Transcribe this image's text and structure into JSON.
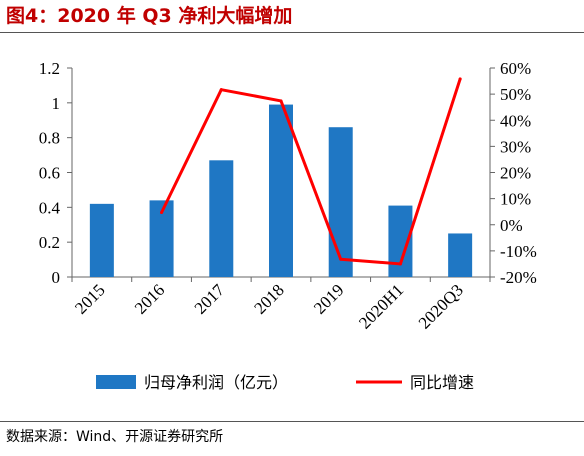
{
  "figure": {
    "title": "图4：2020 年 Q3 净利大幅增加",
    "source": "数据来源：Wind、开源证券研究所"
  },
  "chart_data": {
    "type": "bar",
    "categories": [
      "2015",
      "2016",
      "2017",
      "2018",
      "2019",
      "2020H1",
      "2020Q3"
    ],
    "series": [
      {
        "name": "归母净利润（亿元）",
        "type": "bar",
        "axis": "left",
        "color": "#1f77c4",
        "values": [
          0.42,
          0.44,
          0.67,
          0.99,
          0.86,
          0.41,
          0.25
        ]
      },
      {
        "name": "同比增速",
        "type": "line",
        "axis": "right",
        "color": "#ff0000",
        "values": [
          null,
          4.7,
          51.7,
          47.4,
          -13.2,
          -15.0,
          55.8
        ]
      }
    ],
    "y_left": {
      "ylim": [
        0,
        1.2
      ],
      "ticks": [
        "0",
        "0.2",
        "0.4",
        "0.6",
        "0.8",
        "1",
        "1.2"
      ]
    },
    "y_right": {
      "ylim": [
        -20,
        60
      ],
      "unit": "%",
      "ticks": [
        "-20%",
        "-10%",
        "0%",
        "10%",
        "20%",
        "30%",
        "40%",
        "50%",
        "60%"
      ]
    },
    "legend_position": "bottom",
    "grid": false
  }
}
